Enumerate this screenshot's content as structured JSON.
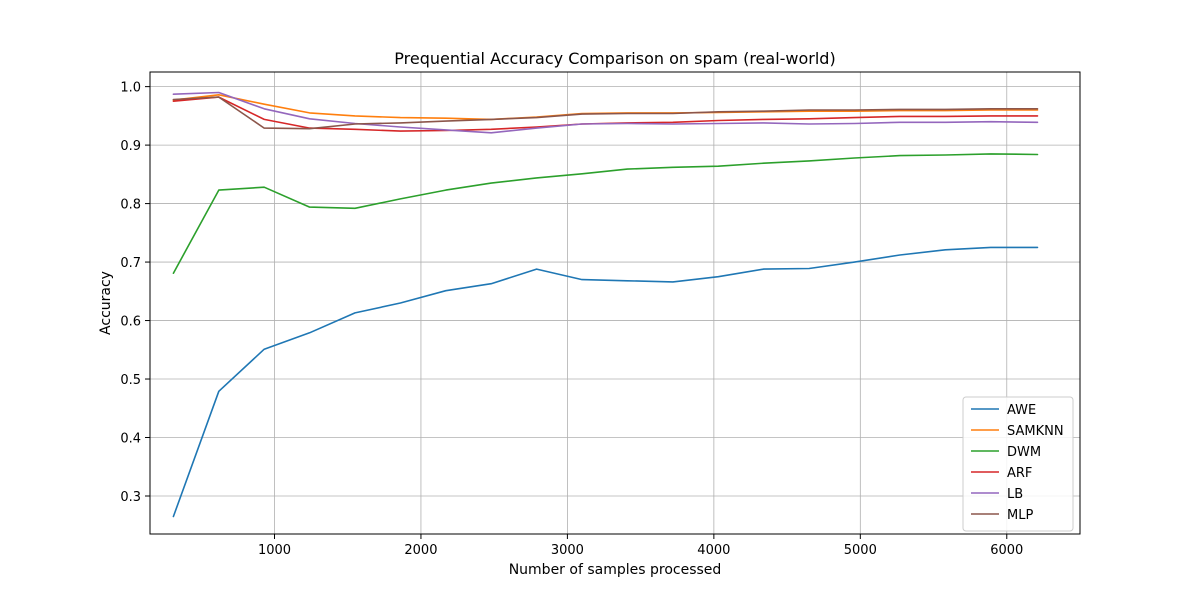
{
  "chart_data": {
    "type": "line",
    "title": "Prequential Accuracy Comparison on spam (real-world)",
    "xlabel": "Number of samples processed",
    "ylabel": "Accuracy",
    "xlim": [
      150,
      6500
    ],
    "ylim": [
      0.235,
      1.025
    ],
    "xticks": [
      1000,
      2000,
      3000,
      4000,
      5000,
      6000
    ],
    "yticks": [
      0.3,
      0.4,
      0.5,
      0.6,
      0.7,
      0.8,
      0.9,
      1.0
    ],
    "xtick_labels": [
      "1000",
      "2000",
      "3000",
      "4000",
      "5000",
      "6000"
    ],
    "ytick_labels": [
      "0.3",
      "0.4",
      "0.5",
      "0.6",
      "0.7",
      "0.8",
      "0.9",
      "1.0"
    ],
    "grid": true,
    "legend_position": "lower-right",
    "x": [
      310,
      620,
      930,
      1240,
      1550,
      1860,
      2170,
      2480,
      2790,
      3100,
      3410,
      3720,
      4030,
      4340,
      4650,
      4960,
      5270,
      5580,
      5890,
      6210
    ],
    "series": [
      {
        "name": "AWE",
        "color": "#1f77b4",
        "values": [
          0.265,
          0.479,
          0.551,
          0.579,
          0.613,
          0.63,
          0.651,
          0.663,
          0.688,
          0.67,
          0.668,
          0.666,
          0.675,
          0.688,
          0.689,
          0.7,
          0.712,
          0.721,
          0.725,
          0.725
        ]
      },
      {
        "name": "SAMKNN",
        "color": "#ff7f0e",
        "values": [
          0.977,
          0.986,
          0.97,
          0.955,
          0.95,
          0.947,
          0.946,
          0.944,
          0.948,
          0.954,
          0.955,
          0.955,
          0.956,
          0.957,
          0.958,
          0.958,
          0.959,
          0.959,
          0.96,
          0.96
        ]
      },
      {
        "name": "DWM",
        "color": "#2ca02c",
        "values": [
          0.681,
          0.823,
          0.828,
          0.794,
          0.792,
          0.808,
          0.823,
          0.835,
          0.844,
          0.851,
          0.859,
          0.862,
          0.864,
          0.869,
          0.873,
          0.878,
          0.882,
          0.883,
          0.885,
          0.884
        ]
      },
      {
        "name": "ARF",
        "color": "#d62728",
        "values": [
          0.975,
          0.982,
          0.944,
          0.929,
          0.927,
          0.924,
          0.925,
          0.927,
          0.931,
          0.936,
          0.938,
          0.939,
          0.942,
          0.944,
          0.945,
          0.947,
          0.949,
          0.949,
          0.95,
          0.95
        ]
      },
      {
        "name": "LB",
        "color": "#9467bd",
        "values": [
          0.987,
          0.99,
          0.962,
          0.945,
          0.937,
          0.931,
          0.926,
          0.921,
          0.929,
          0.936,
          0.937,
          0.936,
          0.937,
          0.938,
          0.936,
          0.937,
          0.939,
          0.939,
          0.94,
          0.939
        ]
      },
      {
        "name": "MLP",
        "color": "#8c564b",
        "values": [
          0.978,
          0.982,
          0.929,
          0.928,
          0.936,
          0.938,
          0.941,
          0.944,
          0.947,
          0.953,
          0.954,
          0.954,
          0.957,
          0.958,
          0.96,
          0.96,
          0.961,
          0.961,
          0.962,
          0.962
        ]
      }
    ]
  }
}
